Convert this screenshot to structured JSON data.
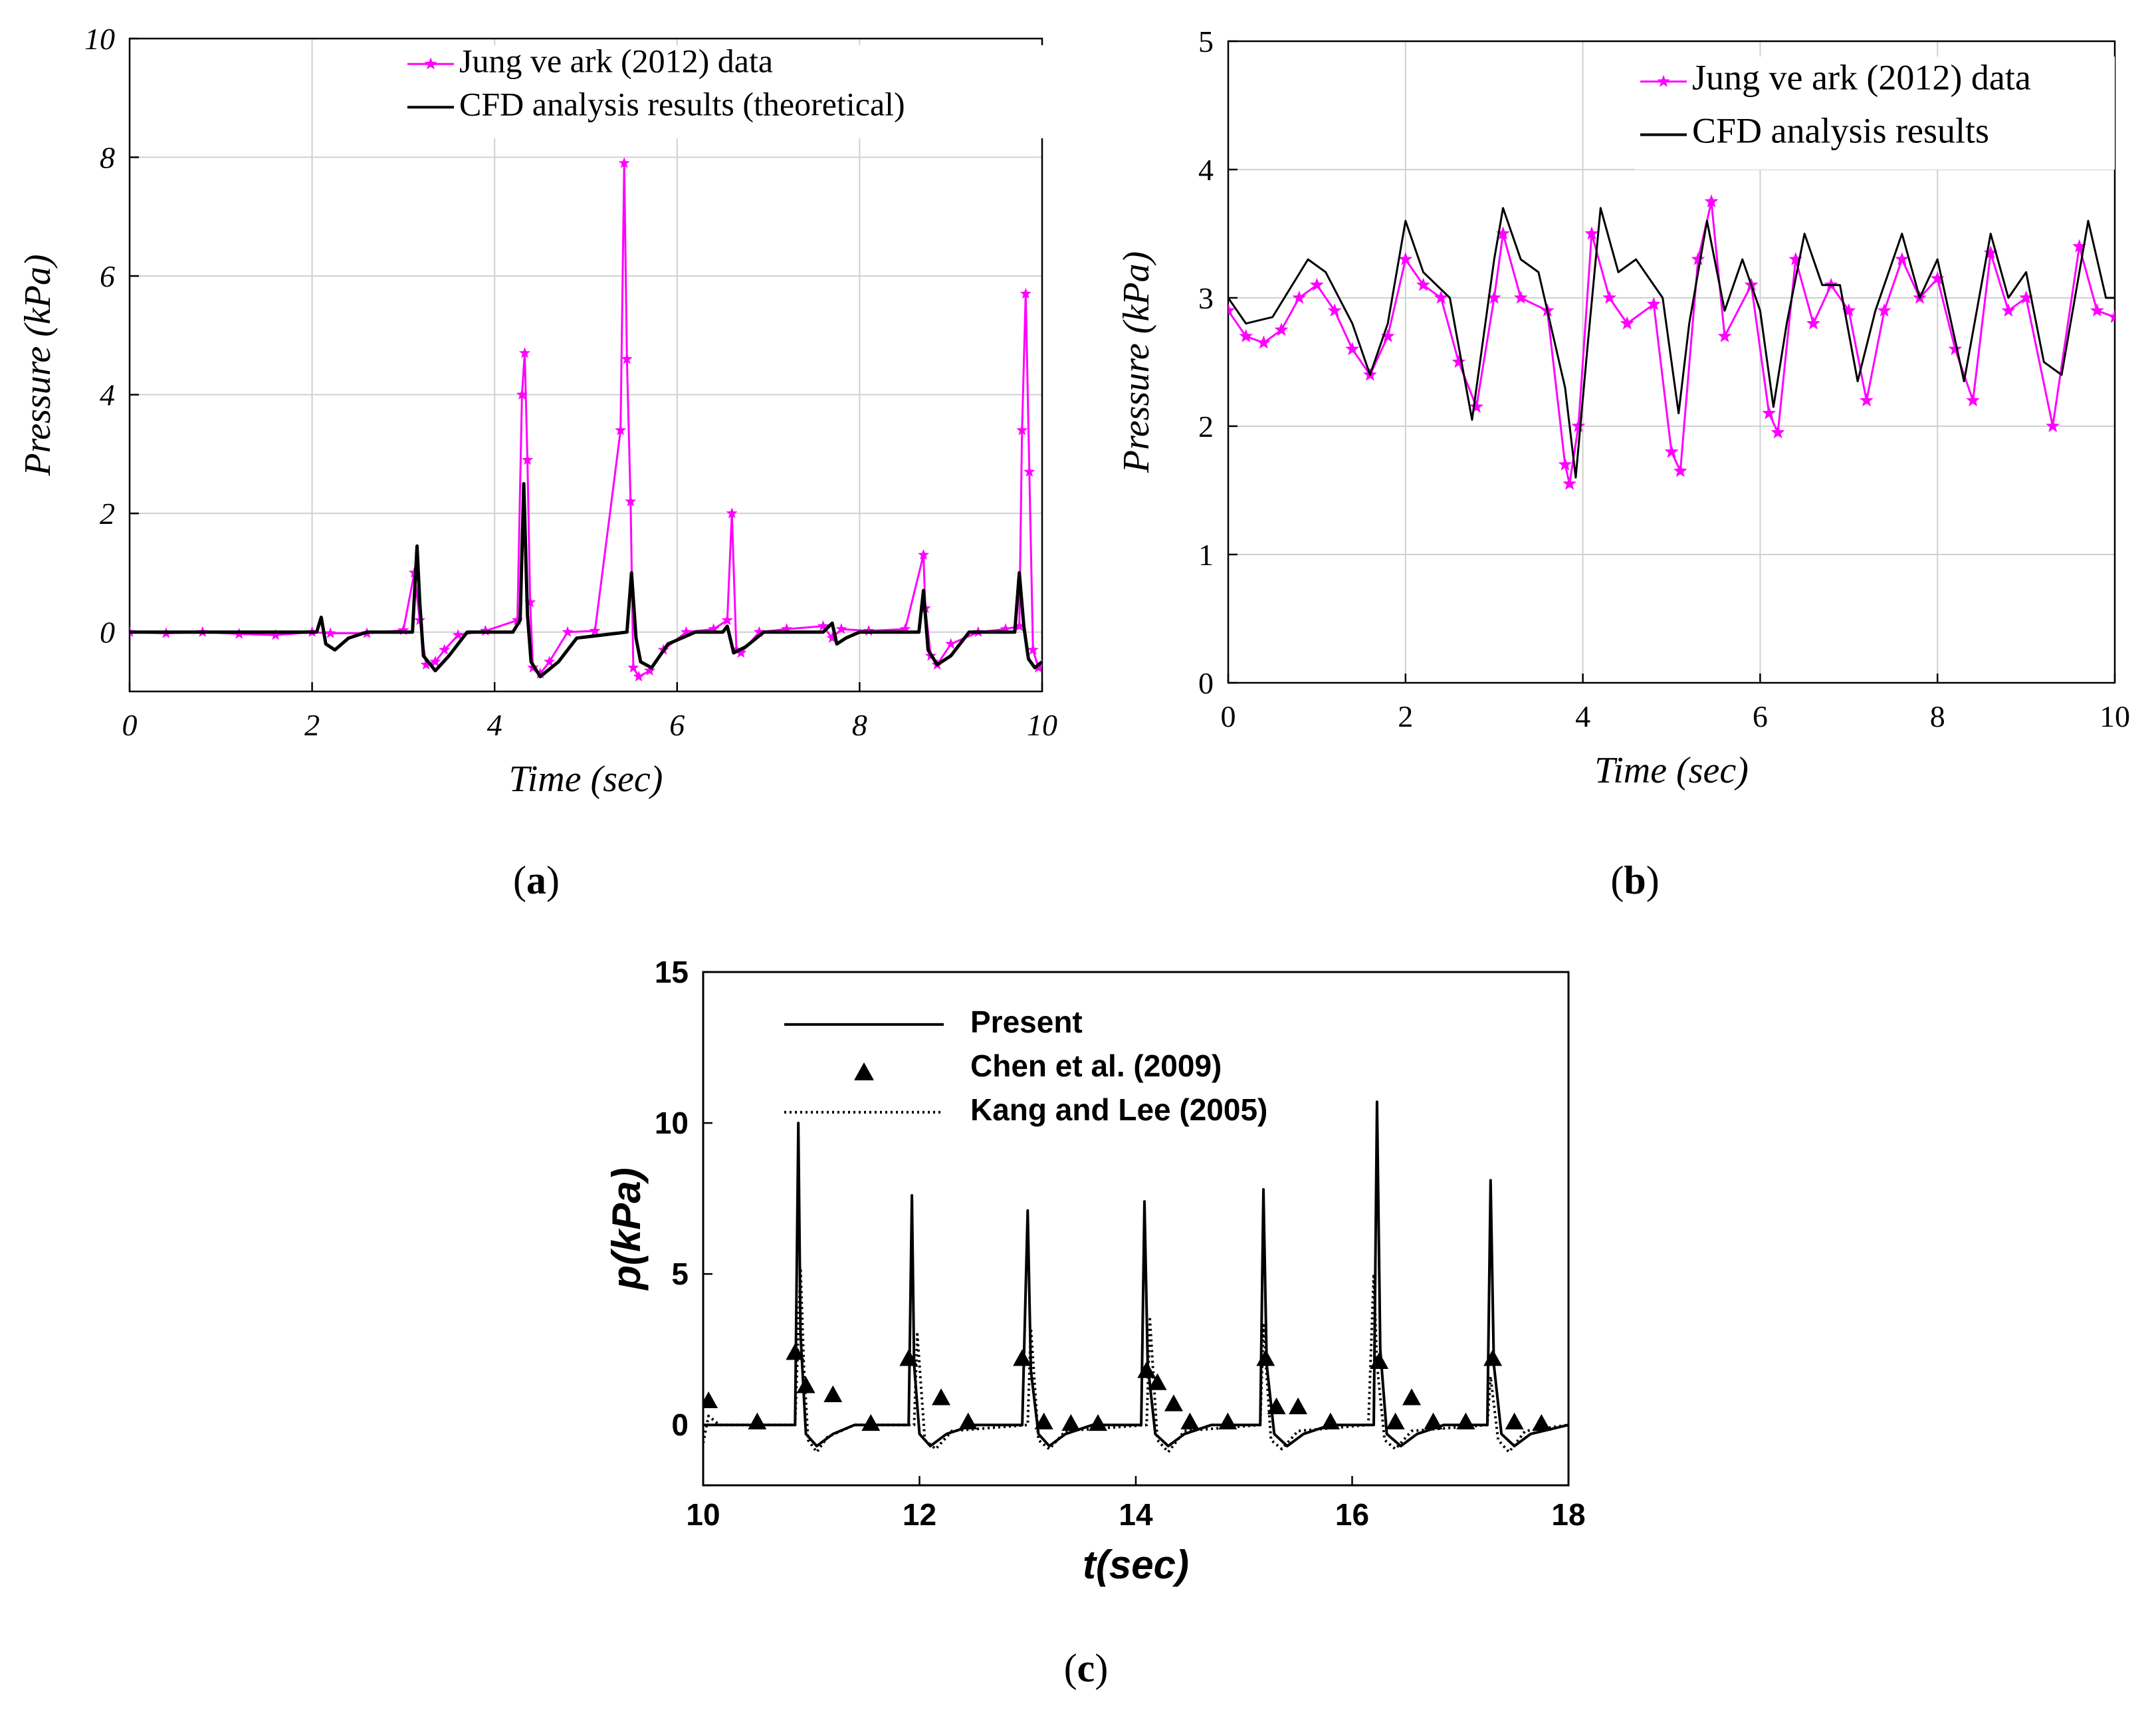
{
  "chart_data": [
    {
      "id": "a",
      "type": "line",
      "caption_letter": "a",
      "xlabel": "Time (sec)",
      "ylabel": "Pressure (kPa)",
      "xlim": [
        0,
        10
      ],
      "ylim": [
        -1,
        10
      ],
      "xticks": [
        0,
        2,
        4,
        6,
        8,
        10
      ],
      "yticks": [
        0,
        2,
        4,
        6,
        8,
        10
      ],
      "grid": true,
      "legend_position": "top-right",
      "series": [
        {
          "name": "Jung ve ark (2012) data",
          "color": "#ff00ff",
          "marker": "star",
          "x": [
            0,
            0.4,
            0.8,
            1.2,
            1.6,
            2.0,
            2.2,
            2.6,
            3.0,
            3.12,
            3.18,
            3.25,
            3.35,
            3.45,
            3.6,
            3.9,
            4.25,
            4.3,
            4.33,
            4.36,
            4.39,
            4.42,
            4.5,
            4.6,
            4.8,
            5.1,
            5.38,
            5.42,
            5.45,
            5.49,
            5.52,
            5.58,
            5.7,
            5.85,
            6.1,
            6.4,
            6.55,
            6.6,
            6.65,
            6.7,
            6.9,
            7.2,
            7.6,
            7.7,
            7.8,
            8.1,
            8.5,
            8.7,
            8.72,
            8.78,
            8.85,
            9.0,
            9.3,
            9.6,
            9.75,
            9.78,
            9.82,
            9.86,
            9.9,
            9.96,
            10.0
          ],
          "y": [
            0,
            -0.02,
            0,
            -0.03,
            -0.05,
            0,
            -0.02,
            -0.02,
            0.03,
            1.0,
            0.2,
            -0.55,
            -0.5,
            -0.3,
            -0.05,
            0.02,
            0.2,
            4.0,
            4.7,
            2.9,
            0.5,
            -0.6,
            -0.7,
            -0.5,
            0,
            0.02,
            3.4,
            7.9,
            4.6,
            2.2,
            -0.6,
            -0.75,
            -0.65,
            -0.3,
            0,
            0.05,
            0.2,
            2.0,
            -0.3,
            -0.35,
            0,
            0.05,
            0.1,
            -0.1,
            0.05,
            0.02,
            0.05,
            1.3,
            0.4,
            -0.4,
            -0.55,
            -0.2,
            0,
            0.05,
            0.1,
            3.4,
            5.7,
            2.7,
            -0.3,
            -0.6,
            -0.55
          ]
        },
        {
          "name": "CFD analysis results (theoretical)",
          "color": "#000000",
          "marker": "none",
          "x": [
            0,
            2.05,
            2.1,
            2.15,
            2.25,
            2.4,
            2.6,
            3.1,
            3.15,
            3.18,
            3.22,
            3.35,
            3.5,
            3.7,
            4.2,
            4.28,
            4.32,
            4.36,
            4.4,
            4.5,
            4.7,
            4.9,
            5.45,
            5.5,
            5.55,
            5.6,
            5.72,
            5.9,
            6.2,
            6.5,
            6.55,
            6.62,
            6.75,
            6.95,
            7.6,
            7.7,
            7.75,
            7.85,
            8.0,
            8.65,
            8.7,
            8.75,
            8.85,
            9.0,
            9.2,
            9.7,
            9.75,
            9.8,
            9.85,
            9.92,
            10.0
          ],
          "y": [
            0,
            0,
            0.25,
            -0.2,
            -0.3,
            -0.1,
            0,
            0,
            1.45,
            0.5,
            -0.4,
            -0.65,
            -0.4,
            0,
            0,
            0.2,
            2.5,
            0.3,
            -0.5,
            -0.75,
            -0.5,
            -0.1,
            0,
            1.0,
            -0.1,
            -0.5,
            -0.6,
            -0.2,
            0,
            0,
            0.1,
            -0.35,
            -0.25,
            0,
            0,
            0.15,
            -0.2,
            -0.1,
            0,
            0,
            0.7,
            -0.3,
            -0.55,
            -0.4,
            0,
            0,
            1.0,
            0.1,
            -0.45,
            -0.6,
            -0.5
          ]
        }
      ]
    },
    {
      "id": "b",
      "type": "line",
      "caption_letter": "b",
      "xlabel": "Time (sec)",
      "ylabel": "Pressure (kPa)",
      "xlim": [
        0,
        10
      ],
      "ylim": [
        0,
        5
      ],
      "xticks": [
        0,
        2,
        4,
        6,
        8,
        10
      ],
      "yticks": [
        0,
        1,
        2,
        3,
        4,
        5
      ],
      "grid": true,
      "legend_position": "top-right",
      "series": [
        {
          "name": "Jung ve ark (2012) data",
          "color": "#ff00ff",
          "marker": "star",
          "x": [
            0,
            0.2,
            0.4,
            0.6,
            0.8,
            1.0,
            1.2,
            1.4,
            1.6,
            1.8,
            2.0,
            2.2,
            2.4,
            2.6,
            2.8,
            3.0,
            3.1,
            3.3,
            3.6,
            3.8,
            3.85,
            3.95,
            4.1,
            4.3,
            4.5,
            4.8,
            5.0,
            5.1,
            5.3,
            5.45,
            5.6,
            5.9,
            6.1,
            6.2,
            6.4,
            6.6,
            6.8,
            7.0,
            7.2,
            7.4,
            7.6,
            7.8,
            8.0,
            8.2,
            8.4,
            8.6,
            8.8,
            9.0,
            9.3,
            9.6,
            9.8,
            10.0
          ],
          "y": [
            2.9,
            2.7,
            2.65,
            2.75,
            3.0,
            3.1,
            2.9,
            2.6,
            2.4,
            2.7,
            3.3,
            3.1,
            3.0,
            2.5,
            2.15,
            3.0,
            3.5,
            3.0,
            2.9,
            1.7,
            1.55,
            2.0,
            3.5,
            3.0,
            2.8,
            2.95,
            1.8,
            1.65,
            3.3,
            3.75,
            2.7,
            3.1,
            2.1,
            1.95,
            3.3,
            2.8,
            3.1,
            2.9,
            2.2,
            2.9,
            3.3,
            3.0,
            3.15,
            2.6,
            2.2,
            3.35,
            2.9,
            3.0,
            2.0,
            3.4,
            2.9,
            2.85
          ]
        },
        {
          "name": "CFD analysis results",
          "color": "#000000",
          "marker": "none",
          "x": [
            0,
            0.2,
            0.5,
            0.9,
            1.1,
            1.4,
            1.6,
            1.8,
            2.0,
            2.2,
            2.5,
            2.75,
            3.0,
            3.1,
            3.3,
            3.5,
            3.8,
            3.92,
            4.05,
            4.2,
            4.4,
            4.6,
            4.9,
            5.08,
            5.2,
            5.4,
            5.6,
            5.8,
            6.0,
            6.15,
            6.3,
            6.5,
            6.7,
            6.9,
            7.1,
            7.3,
            7.6,
            7.8,
            8.0,
            8.3,
            8.6,
            8.8,
            9.0,
            9.2,
            9.4,
            9.7,
            9.9,
            10.0
          ],
          "y": [
            3.0,
            2.8,
            2.85,
            3.3,
            3.2,
            2.8,
            2.4,
            2.8,
            3.6,
            3.2,
            3.0,
            2.05,
            3.3,
            3.7,
            3.3,
            3.2,
            2.3,
            1.6,
            2.6,
            3.7,
            3.2,
            3.3,
            3.0,
            2.1,
            2.8,
            3.6,
            2.9,
            3.3,
            2.9,
            2.15,
            2.8,
            3.5,
            3.1,
            3.1,
            2.35,
            2.9,
            3.5,
            3.0,
            3.3,
            2.35,
            3.5,
            3.0,
            3.2,
            2.5,
            2.4,
            3.6,
            3.0,
            3.0
          ]
        }
      ]
    },
    {
      "id": "c",
      "type": "line",
      "caption_letter": "c",
      "xlabel": "t(sec)",
      "ylabel": "p(kPa)",
      "xlim": [
        10,
        18
      ],
      "ylim": [
        -2,
        15
      ],
      "xticks": [
        10,
        12,
        14,
        16,
        18
      ],
      "yticks": [
        0,
        5,
        10,
        15
      ],
      "grid": false,
      "legend_position": "top-left",
      "series": [
        {
          "name": "Present",
          "color": "#000000",
          "style": "solid",
          "x": [
            10,
            10.85,
            10.88,
            10.9,
            10.95,
            11.05,
            11.2,
            11.4,
            11.9,
            11.93,
            11.95,
            12.0,
            12.1,
            12.25,
            12.5,
            12.95,
            13.0,
            13.03,
            13.1,
            13.2,
            13.35,
            13.6,
            14.05,
            14.08,
            14.11,
            14.18,
            14.3,
            14.45,
            14.7,
            15.15,
            15.18,
            15.21,
            15.28,
            15.4,
            15.55,
            15.8,
            16.2,
            16.23,
            16.26,
            16.32,
            16.45,
            16.6,
            16.85,
            17.25,
            17.28,
            17.31,
            17.38,
            17.5,
            17.65,
            18
          ],
          "y": [
            0,
            0,
            10.0,
            3.0,
            -0.3,
            -0.7,
            -0.3,
            0,
            0,
            7.6,
            2.0,
            -0.3,
            -0.7,
            -0.3,
            0,
            0,
            7.1,
            1.8,
            -0.3,
            -0.7,
            -0.3,
            0,
            0,
            7.4,
            2.0,
            -0.3,
            -0.7,
            -0.3,
            0,
            0,
            7.8,
            2.0,
            -0.3,
            -0.7,
            -0.3,
            0,
            0,
            10.7,
            2.5,
            -0.3,
            -0.7,
            -0.3,
            0,
            0,
            8.1,
            2.0,
            -0.3,
            -0.7,
            -0.3,
            0
          ]
        },
        {
          "name": "Chen et al. (2009)",
          "color": "#000000",
          "marker": "triangle",
          "x": [
            10.05,
            10.5,
            10.85,
            10.95,
            11.2,
            11.55,
            11.9,
            12.2,
            12.45,
            12.95,
            13.15,
            13.4,
            13.65,
            14.1,
            14.2,
            14.35,
            14.5,
            14.85,
            15.2,
            15.3,
            15.5,
            15.8,
            16.25,
            16.4,
            16.55,
            16.75,
            17.05,
            17.3,
            17.5,
            17.75
          ],
          "y": [
            0.8,
            0.1,
            2.4,
            1.3,
            1.0,
            0.05,
            2.2,
            0.9,
            0.1,
            2.2,
            0.1,
            0.05,
            0.05,
            1.8,
            1.4,
            0.7,
            0.1,
            0.1,
            2.2,
            0.6,
            0.6,
            0.1,
            2.1,
            0.1,
            0.9,
            0.1,
            0.1,
            2.2,
            0.1,
            0.05
          ]
        },
        {
          "name": "Kang and Lee (2005)",
          "color": "#000000",
          "style": "dotted",
          "x": [
            10,
            10.05,
            10.15,
            10.85,
            10.9,
            10.93,
            10.97,
            11.05,
            11.15,
            11.4,
            11.95,
            11.98,
            12.05,
            12.15,
            12.3,
            13.0,
            13.03,
            13.1,
            13.2,
            13.35,
            14.1,
            14.13,
            14.2,
            14.3,
            14.45,
            15.15,
            15.18,
            15.25,
            15.35,
            15.5,
            16.15,
            16.2,
            16.23,
            16.3,
            16.4,
            16.55,
            17.25,
            17.28,
            17.35,
            17.45,
            17.6,
            18
          ],
          "y": [
            -0.6,
            0.3,
            0,
            0,
            5.2,
            2.0,
            -0.5,
            -0.9,
            -0.4,
            0,
            0,
            3.0,
            -0.5,
            -0.8,
            -0.2,
            0,
            3.2,
            -0.5,
            -0.8,
            -0.2,
            0,
            3.5,
            -0.5,
            -0.9,
            -0.2,
            0,
            3.3,
            -0.5,
            -0.8,
            -0.2,
            0,
            5.0,
            2.0,
            -0.5,
            -0.8,
            -0.2,
            0,
            1.6,
            -0.5,
            -0.9,
            -0.2,
            0
          ]
        }
      ]
    }
  ]
}
